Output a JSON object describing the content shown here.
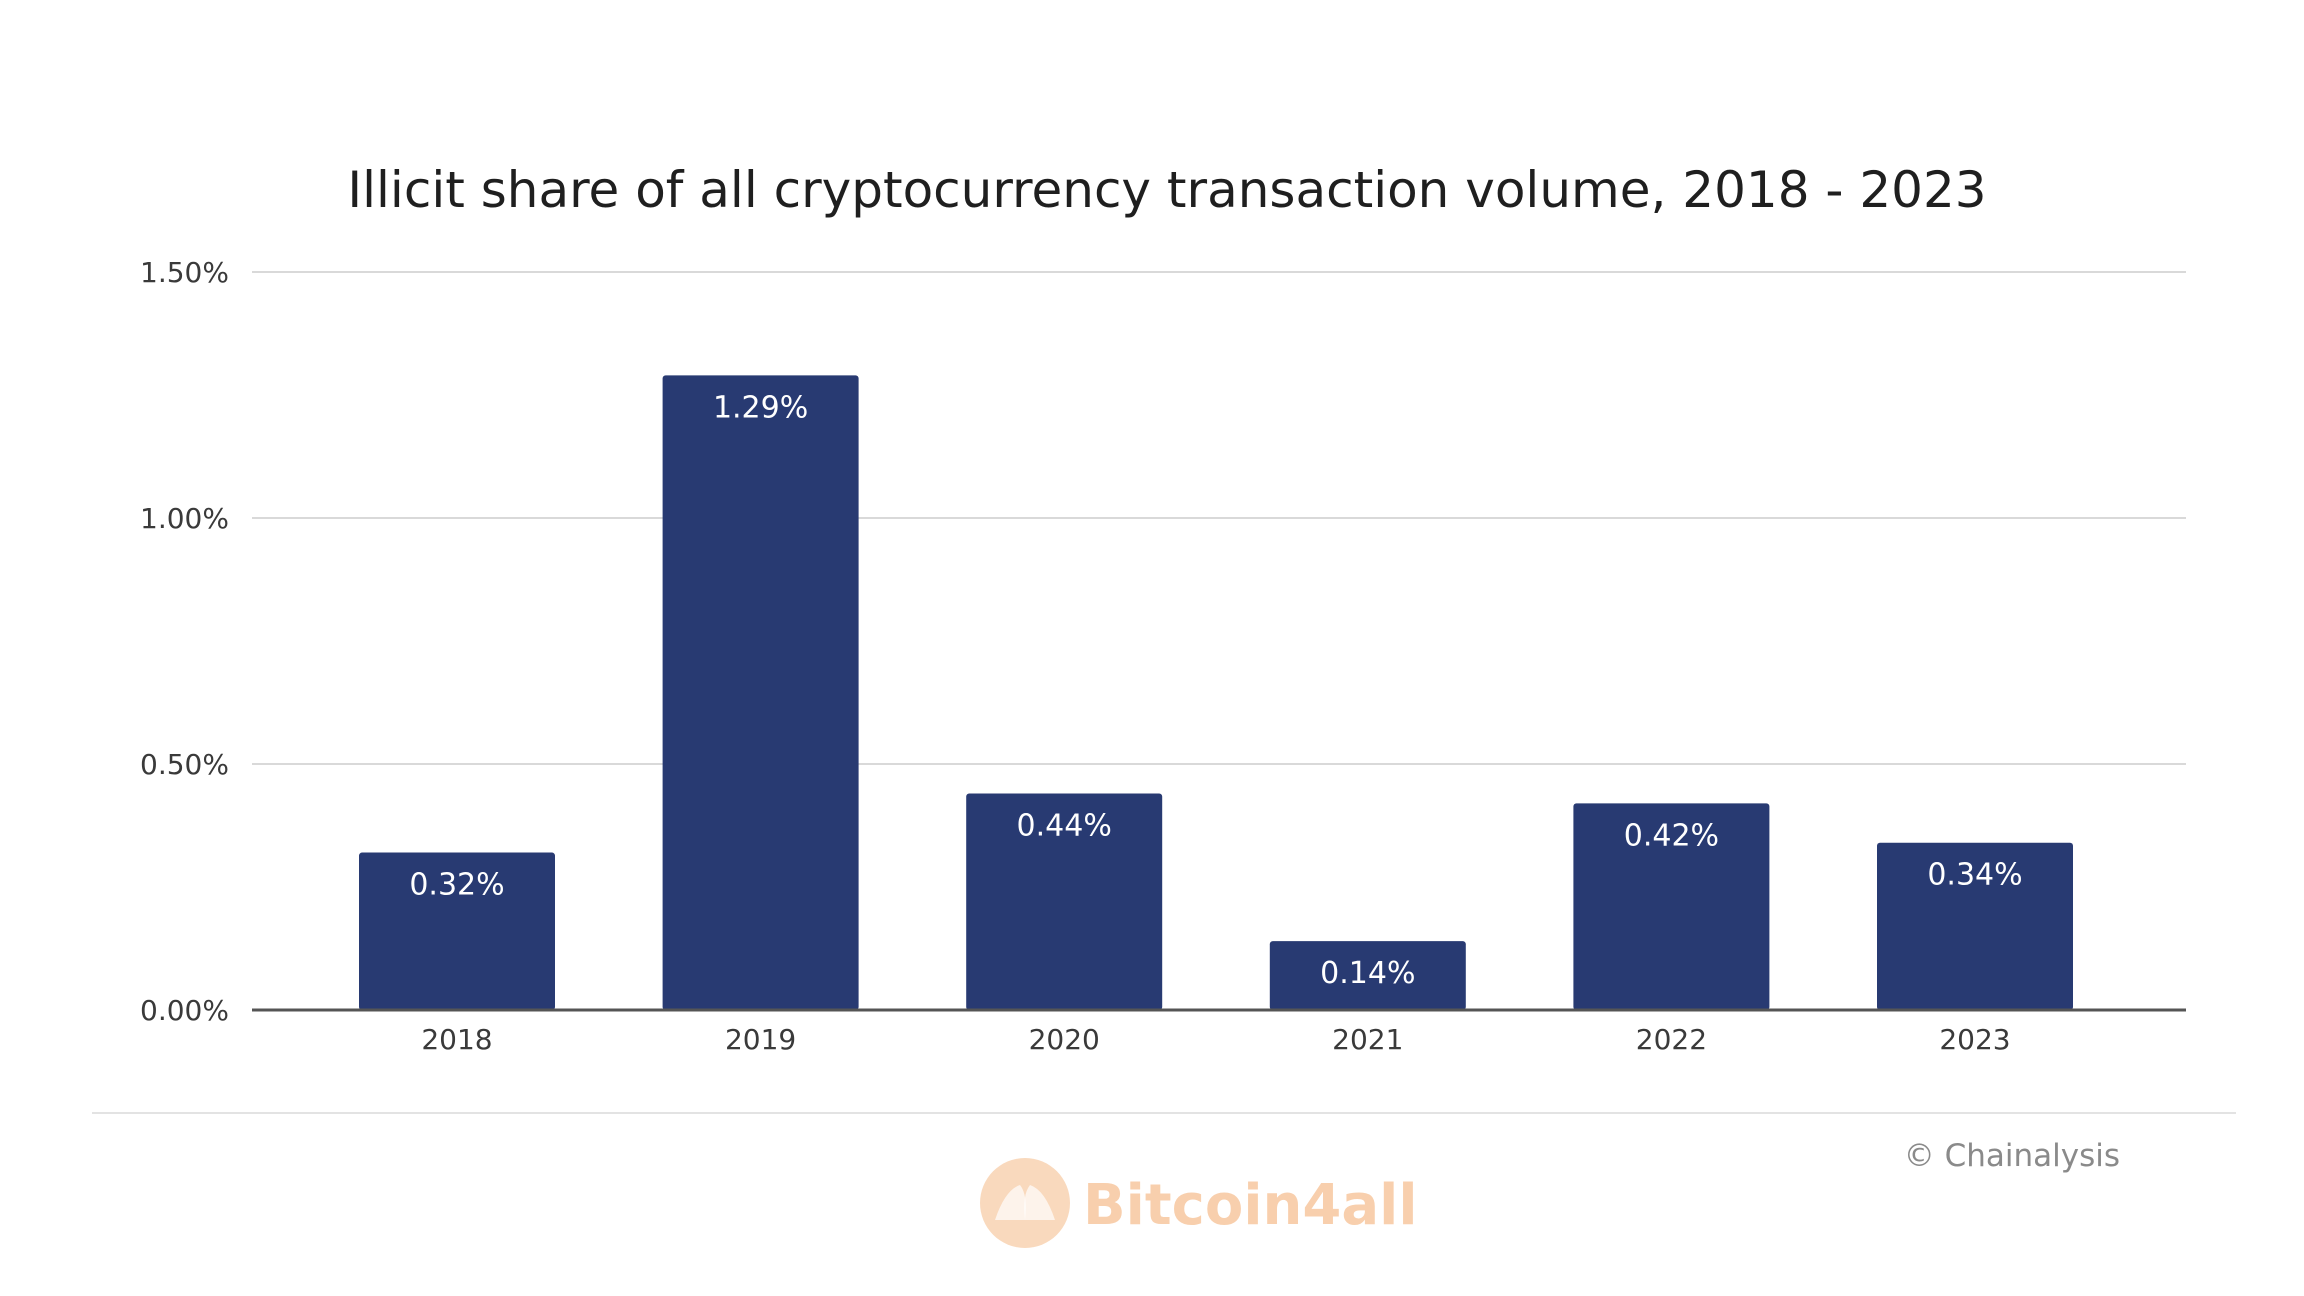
{
  "chart_data": {
    "type": "bar",
    "title": "Illicit share of all cryptocurrency transaction volume, 2018 - 2023",
    "categories": [
      "2018",
      "2019",
      "2020",
      "2021",
      "2022",
      "2023"
    ],
    "values": [
      0.32,
      1.29,
      0.44,
      0.14,
      0.42,
      0.34
    ],
    "value_labels": [
      "0.32%",
      "1.29%",
      "0.44%",
      "0.14%",
      "0.42%",
      "0.34%"
    ],
    "y_ticks": [
      0,
      0.5,
      1.0,
      1.5
    ],
    "y_tick_labels": [
      "0.00%",
      "0.50%",
      "1.00%",
      "1.50%"
    ],
    "ylim": [
      0,
      1.5
    ],
    "xlabel": "",
    "ylabel": "",
    "grid": true,
    "legend": "none",
    "bar_color": "#283a72",
    "gridline_color": "#d9d9d9",
    "axis_color": "#555555"
  },
  "source": "© Chainalysis",
  "watermark": {
    "text": "Bitcoin4all",
    "color": "#f7c79f",
    "icon": "hands-coin-icon"
  }
}
